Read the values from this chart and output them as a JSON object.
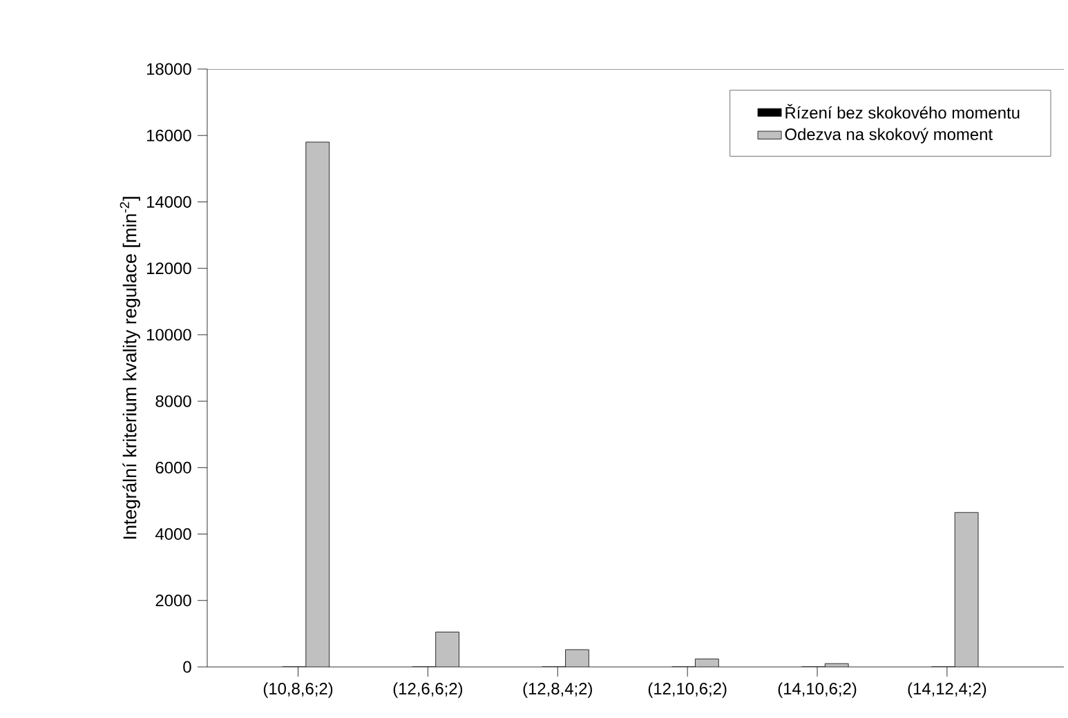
{
  "chart_data": {
    "type": "bar",
    "ylabel": "Integrální kriterium kvality regulace [min$^{-2}$]",
    "categories": [
      "(10,8,6;2)",
      "(12,6,6;2)",
      "(12,8,4;2)",
      "(12,10,6;2)",
      "(14,10,6;2)",
      "(14,12,4;2)"
    ],
    "series": [
      {
        "name": "Řízení bez skokového momentu",
        "color": "#000000",
        "values": [
          0,
          0,
          0,
          0,
          0,
          0
        ]
      },
      {
        "name": "Odezva na skokový moment",
        "color": "#c0c0c0",
        "values": [
          15800,
          1050,
          520,
          240,
          100,
          4650
        ]
      }
    ],
    "ylim": [
      0,
      18000
    ],
    "yticks": [
      0,
      2000,
      4000,
      6000,
      8000,
      10000,
      12000,
      14000,
      16000,
      18000
    ],
    "grid": false,
    "legend": "top right"
  }
}
